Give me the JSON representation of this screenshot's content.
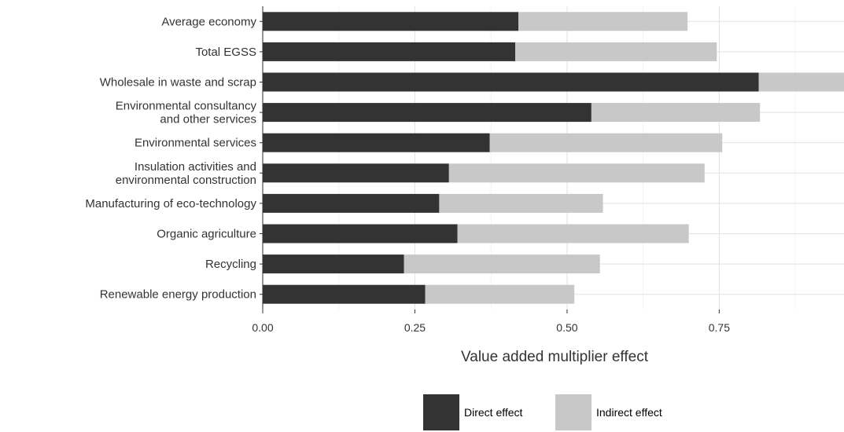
{
  "chart_data": {
    "type": "bar",
    "orientation": "horizontal",
    "stacked": true,
    "categories": [
      "Average economy",
      "Total EGSS",
      "Wholesale in waste and scrap",
      [
        "Environmental consultancy",
        "and other services"
      ],
      "Environmental services",
      [
        "Insulation activities and",
        "environmental construction"
      ],
      "Manufacturing of eco-technology",
      "Organic agriculture",
      "Recycling",
      "Renewable energy production"
    ],
    "series": [
      {
        "name": "Direct effect",
        "color": "#333333",
        "values": [
          0.42,
          0.415,
          0.815,
          0.54,
          0.373,
          0.306,
          0.29,
          0.32,
          0.232,
          0.267
        ]
      },
      {
        "name": "Indirect effect",
        "color": "#c8c8c8",
        "values": [
          0.278,
          0.331,
          0.2,
          0.277,
          0.382,
          0.42,
          0.269,
          0.38,
          0.322,
          0.245
        ]
      }
    ],
    "xlabel": "Value added multiplier effect",
    "ylabel": "",
    "xlim": [
      0,
      0.955
    ],
    "xticks": [
      0,
      0.25,
      0.5,
      0.75
    ],
    "xtick_labels": [
      "0.00",
      "0.25",
      "0.50",
      "0.75"
    ],
    "grid": true,
    "legend_position": "bottom"
  }
}
